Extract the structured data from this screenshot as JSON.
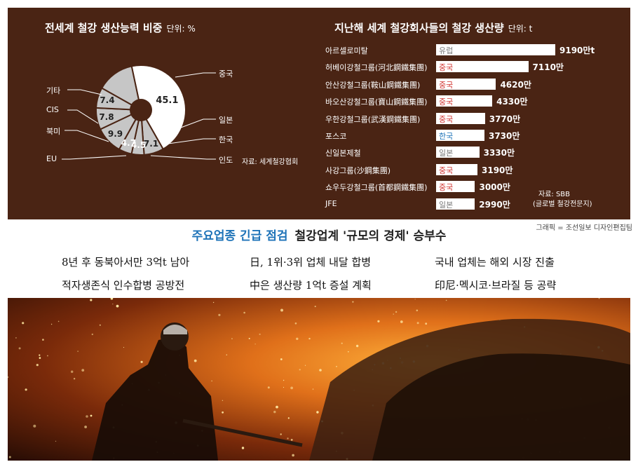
{
  "pie_title": "전세계 철강 생산능력 비중",
  "pie_unit": "단위: %",
  "pie_source": "자료: 세계철강협회",
  "bar_title": "지난해 세계 철강회사들의 철강 생산량",
  "bar_unit": "단위: t",
  "bar_source_1": "자료: SBB",
  "bar_source_2": "(글로벌 철강전문지)",
  "credit": "그래픽 = 조선일보 디자인편집팀",
  "headline_keyword": "주요업종 긴급 점검",
  "headline_rest": "철강업계 '규모의 경제' 승부수",
  "points": [
    "8년 후 동북아서만 3억t 남아",
    "적자생존식 인수합병 공방전",
    "日, 1위·3위 업체 내달 합병",
    "中은 생산량 1억t 증설 계획",
    "국내 업체는 해외 시장 진출",
    "印尼·멕시코·브라질 등 공략"
  ],
  "colors": {
    "panel": "#4a2414",
    "china": "#d0312d",
    "korea": "#1e73b8",
    "other": "#777777",
    "pie_gray": "#c6c6c6"
  },
  "chart_data": [
    {
      "type": "pie",
      "title": "전세계 철강 생산능력 비중",
      "unit": "%",
      "slices": [
        {
          "label": "중국",
          "value": 45.1,
          "value_label": "45.1"
        },
        {
          "label": "일본",
          "value": 7.1,
          "value_label": "7.1"
        },
        {
          "label": "한국",
          "value": 4.5,
          "value_label": "4.5"
        },
        {
          "label": "인도",
          "value": 4.7,
          "value_label": "4.7"
        },
        {
          "label": "EU",
          "value": 9.9,
          "value_label": "9.9"
        },
        {
          "label": "북미",
          "value": 7.8,
          "value_label": "7.8"
        },
        {
          "label": "CIS",
          "value": 7.4,
          "value_label": "7.4"
        },
        {
          "label": "기타",
          "value": 13.5,
          "value_label": ""
        }
      ]
    },
    {
      "type": "bar",
      "title": "지난해 세계 철강회사들의 철강 생산량",
      "unit": "t",
      "categories": [
        "아르셀로미탈",
        "허베이강철그룹(河北鋼鐵集團)",
        "안산강철그룹(鞍山鋼鐵集團)",
        "바오산강철그룹(寶山鋼鐵集團)",
        "우한강철그룹(武漢鋼鐵集團)",
        "포스코",
        "신일본제철",
        "사강그룹(沙鋼集團)",
        "쇼우두강철그룹(首都鋼鐵集團)",
        "JFE"
      ],
      "regions": [
        "유럽",
        "중국",
        "중국",
        "중국",
        "중국",
        "한국",
        "일본",
        "중국",
        "중국",
        "일본"
      ],
      "values": [
        9190,
        7110,
        4620,
        4330,
        3770,
        3730,
        3330,
        3190,
        3000,
        2990
      ],
      "value_labels": [
        "9190만t",
        "7110만",
        "4620만",
        "4330만",
        "3770만",
        "3730만",
        "3330만",
        "3190만",
        "3000만",
        "2990만"
      ]
    }
  ]
}
